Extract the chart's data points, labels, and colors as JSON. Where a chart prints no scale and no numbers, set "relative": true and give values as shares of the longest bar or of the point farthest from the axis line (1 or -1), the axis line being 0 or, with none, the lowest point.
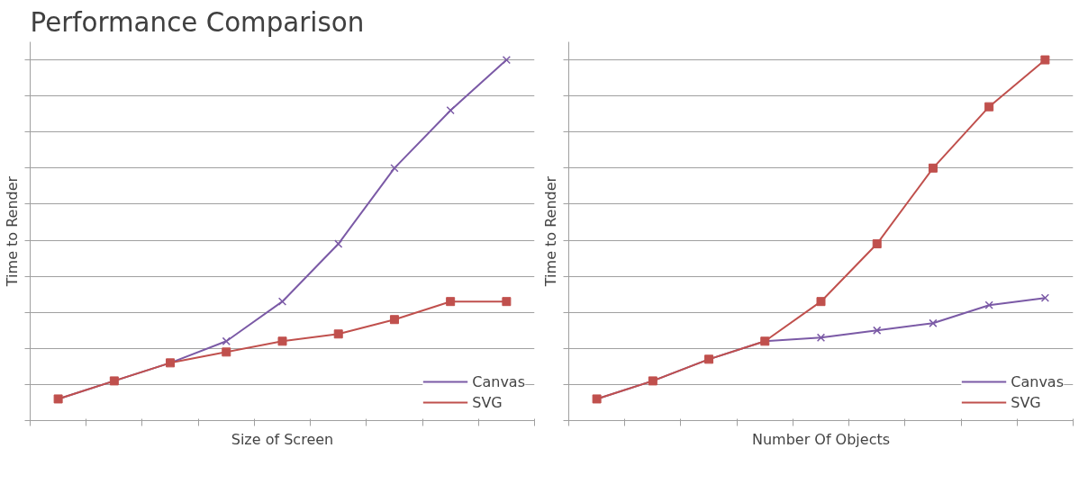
{
  "chart_data": [
    {
      "type": "line",
      "title": "Performance Comparison",
      "xlabel": "Size of Screen",
      "ylabel": "Time to Render",
      "relative": true,
      "grid": "y",
      "legend": "bottom right",
      "tick_labels": false,
      "marker": "cross",
      "categories": [
        null,
        null,
        null,
        null,
        null,
        null,
        null,
        null,
        null
      ],
      "series": [
        {
          "name": "Canvas",
          "color": "#7b5aa6",
          "values": [
            0.06,
            0.11,
            0.16,
            0.22,
            0.33,
            0.49,
            0.7,
            0.86,
            1.0
          ]
        },
        {
          "name": "SVG",
          "color": "#c0504d",
          "marker": "square",
          "values": [
            0.06,
            0.11,
            0.16,
            0.19,
            0.22,
            0.24,
            0.28,
            0.33,
            0.33
          ]
        }
      ]
    },
    {
      "type": "line",
      "xlabel": "Number Of Objects",
      "ylabel": "Time to Render",
      "relative": true,
      "grid": "y",
      "legend": "bottom right",
      "tick_labels": false,
      "marker": "cross",
      "categories": [
        null,
        null,
        null,
        null,
        null,
        null,
        null,
        null,
        null
      ],
      "series": [
        {
          "name": "Canvas",
          "color": "#7b5aa6",
          "values": [
            0.06,
            0.11,
            0.17,
            0.22,
            0.23,
            0.25,
            0.27,
            0.32,
            0.34
          ]
        },
        {
          "name": "SVG",
          "color": "#c0504d",
          "marker": "square",
          "values": [
            0.06,
            0.11,
            0.17,
            0.22,
            0.33,
            0.49,
            0.7,
            0.87,
            1.0
          ]
        }
      ]
    }
  ]
}
